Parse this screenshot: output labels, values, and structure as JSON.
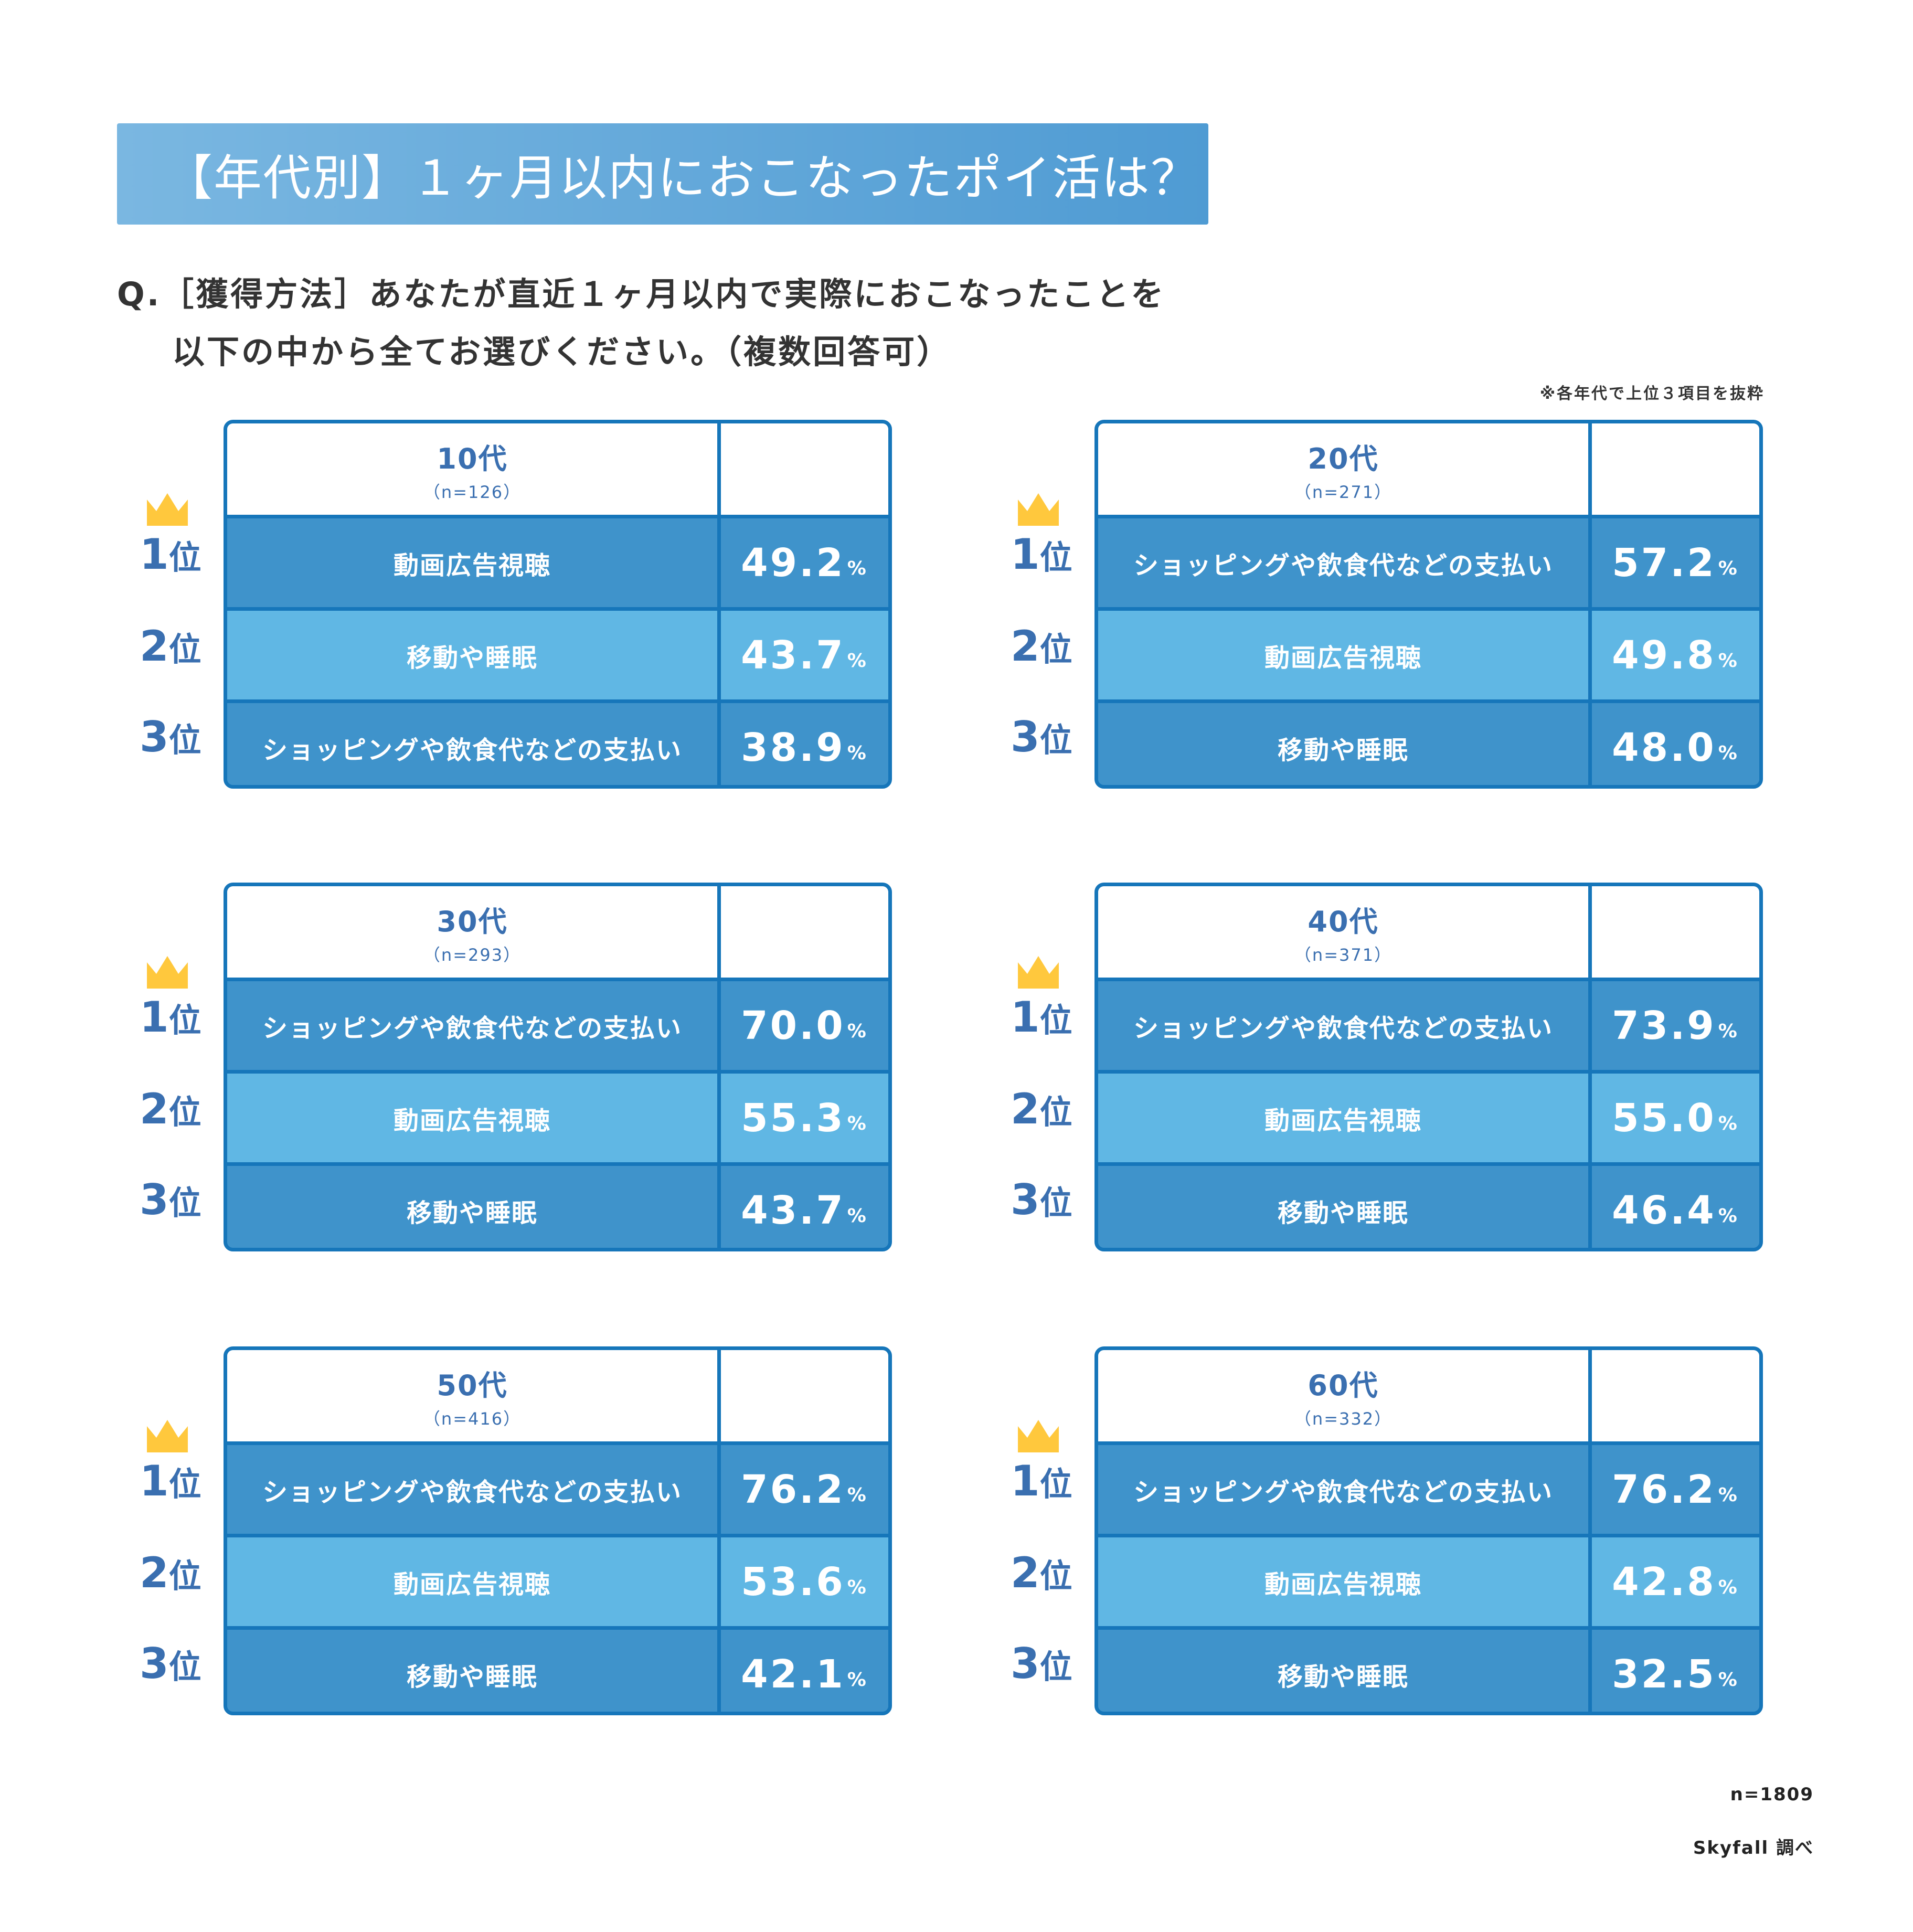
{
  "title": "【年代別】１ヶ月以内におこなったポイ活は？",
  "question_line1": "Q.［獲得方法］あなたが直近１ヶ月以内で実際におこなったことを",
  "question_line2": "以下の中から全てお選びください。（複数回答可）",
  "note": "※各年代で上位３項目を抜粋",
  "rank_suffix": "位",
  "percent_sign": "%",
  "colors": {
    "border": "#1676ba",
    "row_dark": "#3f93cb",
    "row_light": "#60b7e4",
    "rank_text": "#3a6fb0",
    "crown": "#ffc83d"
  },
  "panels": [
    {
      "age": "10代",
      "n": "（n=126）",
      "items": [
        {
          "rank": "1",
          "label": "動画広告視聴",
          "value": "49.2"
        },
        {
          "rank": "2",
          "label": "移動や睡眠",
          "value": "43.7"
        },
        {
          "rank": "3",
          "label": "ショッピングや飲食代などの支払い",
          "value": "38.9"
        }
      ]
    },
    {
      "age": "20代",
      "n": "（n=271）",
      "items": [
        {
          "rank": "1",
          "label": "ショッピングや飲食代などの支払い",
          "value": "57.2"
        },
        {
          "rank": "2",
          "label": "動画広告視聴",
          "value": "49.8"
        },
        {
          "rank": "3",
          "label": "移動や睡眠",
          "value": "48.0"
        }
      ]
    },
    {
      "age": "30代",
      "n": "（n=293）",
      "items": [
        {
          "rank": "1",
          "label": "ショッピングや飲食代などの支払い",
          "value": "70.0"
        },
        {
          "rank": "2",
          "label": "動画広告視聴",
          "value": "55.3"
        },
        {
          "rank": "3",
          "label": "移動や睡眠",
          "value": "43.7"
        }
      ]
    },
    {
      "age": "40代",
      "n": "（n=371）",
      "items": [
        {
          "rank": "1",
          "label": "ショッピングや飲食代などの支払い",
          "value": "73.9"
        },
        {
          "rank": "2",
          "label": "動画広告視聴",
          "value": "55.0"
        },
        {
          "rank": "3",
          "label": "移動や睡眠",
          "value": "46.4"
        }
      ]
    },
    {
      "age": "50代",
      "n": "（n=416）",
      "items": [
        {
          "rank": "1",
          "label": "ショッピングや飲食代などの支払い",
          "value": "76.2"
        },
        {
          "rank": "2",
          "label": "動画広告視聴",
          "value": "53.6"
        },
        {
          "rank": "3",
          "label": "移動や睡眠",
          "value": "42.1"
        }
      ]
    },
    {
      "age": "60代",
      "n": "（n=332）",
      "items": [
        {
          "rank": "1",
          "label": "ショッピングや飲食代などの支払い",
          "value": "76.2"
        },
        {
          "rank": "2",
          "label": "動画広告視聴",
          "value": "42.8"
        },
        {
          "rank": "3",
          "label": "移動や睡眠",
          "value": "32.5"
        }
      ]
    }
  ],
  "footer": {
    "total": "n=1809",
    "source": "Skyfall 調べ"
  }
}
